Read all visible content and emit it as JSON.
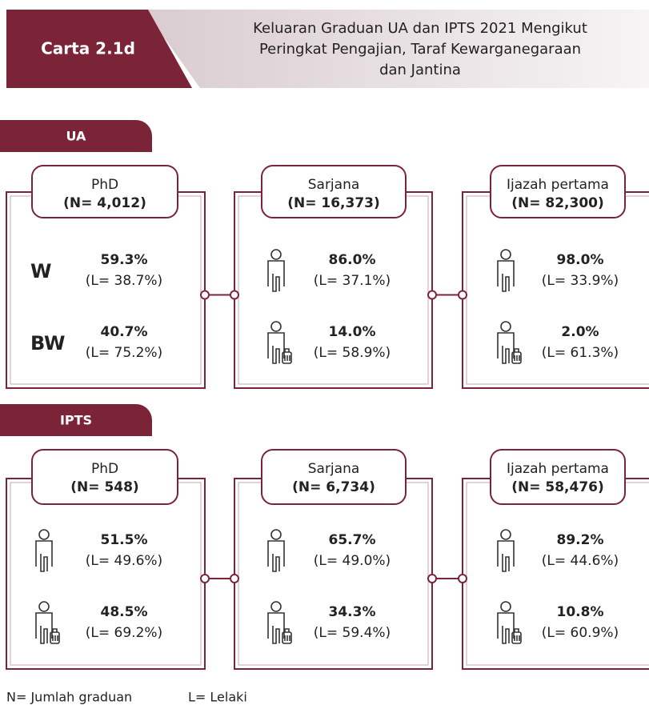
{
  "header": {
    "label": "Carta 2.1d",
    "title": [
      "Keluaran Graduan UA dan IPTS 2021 Mengikut",
      "Peringkat Pengajian, Taraf Kewarganegaraan",
      "dan Jantina"
    ]
  },
  "sections": [
    {
      "name": "UA",
      "groups": [
        {
          "label": "PhD",
          "n": "(N= 4,012)",
          "rows": [
            {
              "tag": "W",
              "pct": "59.3%",
              "l": "(L= 38.7%)"
            },
            {
              "tag": "BW",
              "pct": "40.7%",
              "l": "(L= 75.2%)"
            }
          ]
        },
        {
          "label": "Sarjana",
          "n": "(N= 16,373)",
          "rows": [
            {
              "pct": "86.0%",
              "l": "(L= 37.1%)"
            },
            {
              "pct": "14.0%",
              "l": "(L= 58.9%)"
            }
          ]
        },
        {
          "label": "Ijazah pertama",
          "n": "(N= 82,300)",
          "rows": [
            {
              "pct": "98.0%",
              "l": "(L= 33.9%)"
            },
            {
              "pct": "2.0%",
              "l": "(L= 61.3%)"
            }
          ]
        }
      ]
    },
    {
      "name": "IPTS",
      "groups": [
        {
          "label": "PhD",
          "n": "(N= 548)",
          "rows": [
            {
              "pct": "51.5%",
              "l": "(L= 49.6%)"
            },
            {
              "pct": "48.5%",
              "l": "(L= 69.2%)"
            }
          ]
        },
        {
          "label": "Sarjana",
          "n": "(N= 6,734)",
          "rows": [
            {
              "pct": "65.7%",
              "l": "(L= 49.0%)"
            },
            {
              "pct": "34.3%",
              "l": "(L= 59.4%)"
            }
          ]
        },
        {
          "label": "Ijazah pertama",
          "n": "(N= 58,476)",
          "rows": [
            {
              "pct": "89.2%",
              "l": "(L= 44.6%)"
            },
            {
              "pct": "10.8%",
              "l": "(L= 60.9%)"
            }
          ]
        }
      ]
    }
  ],
  "footer": [
    "N= Jumlah graduan",
    "L= Lelaki"
  ]
}
